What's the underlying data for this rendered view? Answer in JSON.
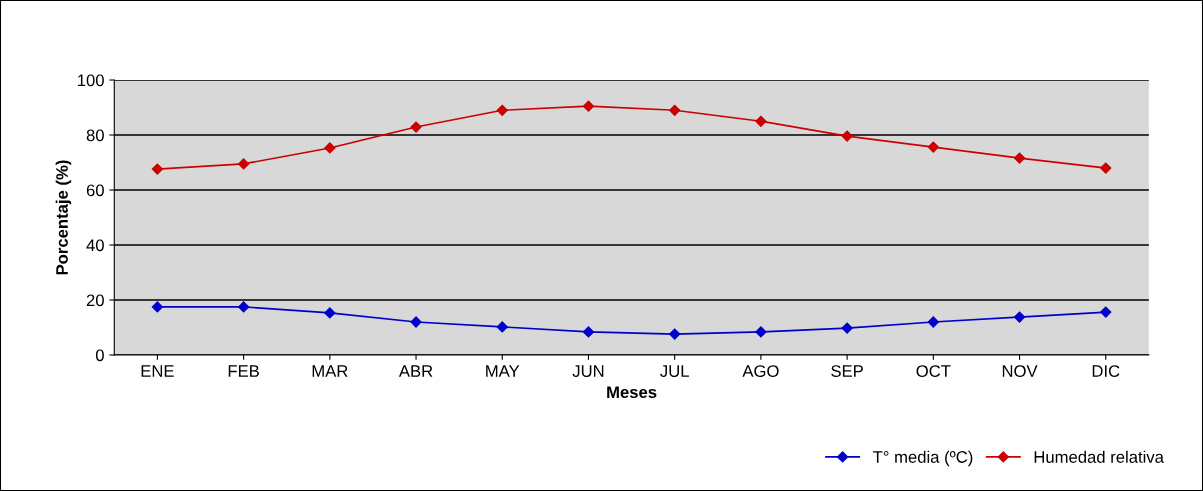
{
  "chart_data": {
    "type": "line",
    "xlabel": "Meses",
    "ylabel": "Porcentaje (%)",
    "categories": [
      "ENE",
      "FEB",
      "MAR",
      "ABR",
      "MAY",
      "JUN",
      "JUL",
      "AGO",
      "SEP",
      "OCT",
      "NOV",
      "DIC"
    ],
    "series": [
      {
        "name": "T° media (ºC)",
        "color": "#0000cc",
        "values": [
          17.5,
          17.5,
          15.3,
          12,
          10.2,
          8.4,
          7.6,
          8.4,
          9.8,
          12,
          13.8,
          15.6
        ]
      },
      {
        "name": "Humedad relativa",
        "color": "#cc0000",
        "values": [
          67.6,
          69.5,
          75.3,
          82.9,
          89,
          90.5,
          89,
          85,
          79.6,
          75.6,
          71.6,
          68
        ]
      }
    ],
    "ylim": [
      0,
      100
    ],
    "yticks": [
      0,
      20,
      40,
      60,
      80,
      100
    ],
    "grid": "y",
    "legend": "bottom right",
    "marker": "diamond",
    "line_style": "solid"
  }
}
